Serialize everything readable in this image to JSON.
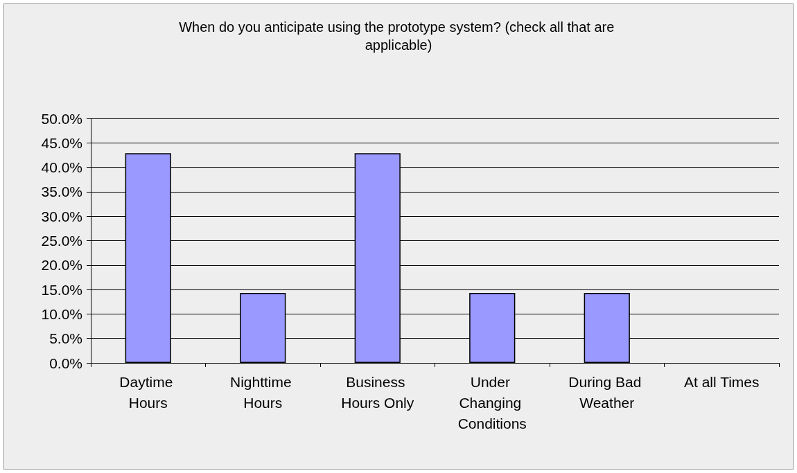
{
  "chart_data": {
    "type": "bar",
    "title": "When do you anticipate using the prototype system? (check all that are applicable)",
    "categories": [
      "Daytime Hours",
      "Nighttime Hours",
      "Business Hours Only",
      "Under Changing Conditions",
      "During Bad Weather",
      "At all Times"
    ],
    "values": [
      42.9,
      14.3,
      42.9,
      14.3,
      14.3,
      0
    ],
    "color": "#9999ff",
    "ylim": [
      0,
      50
    ],
    "yticks": [
      {
        "value": 0,
        "label": "0.0%"
      },
      {
        "value": 5,
        "label": "5.0%"
      },
      {
        "value": 10,
        "label": "10.0%"
      },
      {
        "value": 15,
        "label": "15.0%"
      },
      {
        "value": 20,
        "label": "20.0%"
      },
      {
        "value": 25,
        "label": "25.0%"
      },
      {
        "value": 30,
        "label": "30.0%"
      },
      {
        "value": 35,
        "label": "35.0%"
      },
      {
        "value": 40,
        "label": "40.0%"
      },
      {
        "value": 45,
        "label": "45.0%"
      },
      {
        "value": 50,
        "label": "50.0%"
      }
    ],
    "grid": "y"
  }
}
